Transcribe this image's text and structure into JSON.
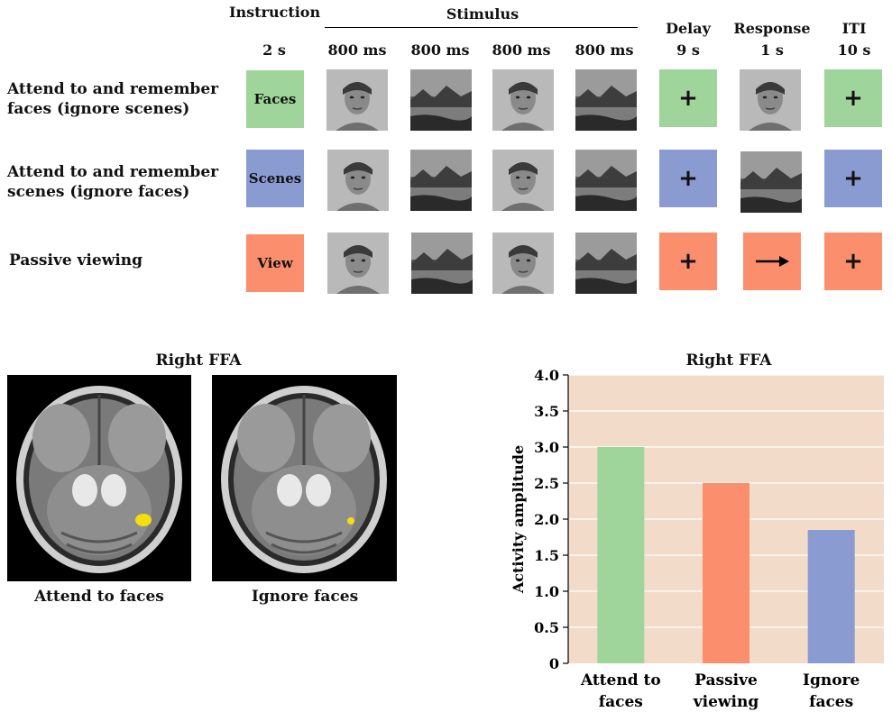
{
  "colors": {
    "faces": "#9fd49a",
    "scenes": "#8a9bd2",
    "view": "#fb8f6d",
    "chart_bg": "#f2dcc9",
    "highlight": "#f5dd10"
  },
  "timeline": {
    "instruction": {
      "label": "Instruction",
      "time": "2 s"
    },
    "stimulus": {
      "label": "Stimulus",
      "times": [
        "800 ms",
        "800 ms",
        "800 ms",
        "800 ms"
      ]
    },
    "delay": {
      "label": "Delay",
      "time": "9 s"
    },
    "response": {
      "label": "Response",
      "time": "1 s"
    },
    "iti": {
      "label": "ITI",
      "time": "10 s"
    }
  },
  "conditions": [
    {
      "label_line1": "Attend to and remember",
      "label_line2": "faces (ignore scenes)",
      "cue": "Faces",
      "stimuli": [
        "face",
        "scene",
        "face",
        "scene"
      ],
      "delay_symbol": "+",
      "response_type": "face",
      "iti_symbol": "+"
    },
    {
      "label_line1": "Attend to and remember",
      "label_line2": "scenes (ignore faces)",
      "cue": "Scenes",
      "stimuli": [
        "face",
        "scene",
        "face",
        "scene"
      ],
      "delay_symbol": "+",
      "response_type": "scene",
      "iti_symbol": "+"
    },
    {
      "label_line1": "Passive viewing",
      "label_line2": "",
      "cue": "View",
      "stimuli": [
        "face",
        "scene",
        "face",
        "scene"
      ],
      "delay_symbol": "+",
      "response_type": "arrow-right-icon",
      "iti_symbol": "+"
    }
  ],
  "brains": {
    "title": "Right FFA",
    "left_caption": "Attend to faces",
    "right_caption": "Ignore faces"
  },
  "chart_data": {
    "type": "bar",
    "title": "Right FFA",
    "ylabel": "Activity amplitude",
    "xlabel": "",
    "ylim": [
      0,
      4.0
    ],
    "yticks": [
      "0",
      "0.5",
      "1.0",
      "1.5",
      "2.0",
      "2.5",
      "3.0",
      "3.5",
      "4.0"
    ],
    "categories": [
      [
        "Attend to",
        "faces"
      ],
      [
        "Passive",
        "viewing"
      ],
      [
        "Ignore",
        "faces"
      ]
    ],
    "values": [
      3.0,
      2.5,
      1.85
    ],
    "bar_colors": [
      "#9fd49a",
      "#fb8f6d",
      "#8a9bd2"
    ],
    "grid": true
  }
}
